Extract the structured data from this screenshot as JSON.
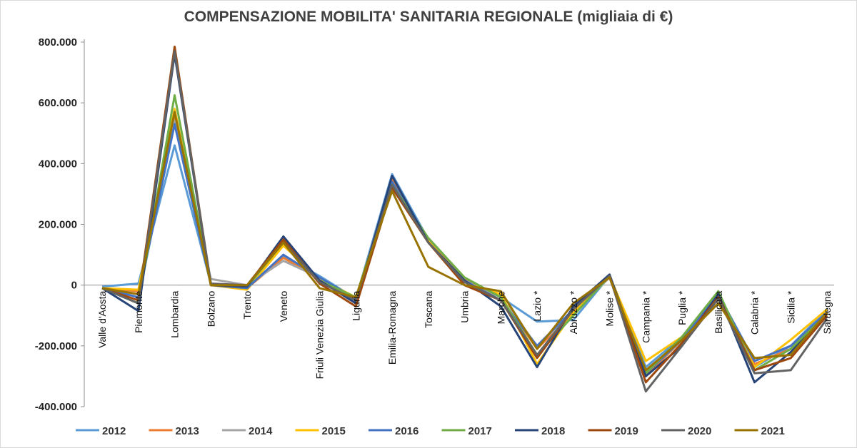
{
  "chart_data": {
    "type": "line",
    "title": "COMPENSAZIONE MOBILITA' SANITARIA REGIONALE (migliaia di €)",
    "xlabel": "",
    "ylabel": "",
    "ylim": [
      -400000,
      800000
    ],
    "yticks": [
      800000,
      600000,
      400000,
      200000,
      0,
      -200000,
      -400000
    ],
    "ytick_labels": [
      "800.000",
      "600.000",
      "400.000",
      "200.000",
      "0",
      "-200.000",
      "-400.000"
    ],
    "grid": false,
    "legend_position": "bottom",
    "categories": [
      "Valle d'Aosta",
      "Piemonte",
      "Lombardia",
      "Bolzano",
      "Trento",
      "Veneto",
      "Friuli Venezia Giulia",
      "Liguria",
      "Emilia-Romagna",
      "Toscana",
      "Umbria",
      "Marche",
      "Lazio *",
      "Abruzzo *",
      "Molise *",
      "Campania *",
      "Puglia *",
      "Basilicata",
      "Calabria *",
      "Sicilia *",
      "Sardegna"
    ],
    "series": [
      {
        "name": "2012",
        "color": "#5b9bd5",
        "values": [
          -5000,
          5000,
          460000,
          5000,
          -10000,
          95000,
          30000,
          -45000,
          365000,
          150000,
          15000,
          -40000,
          -120000,
          -115000,
          30000,
          -270000,
          -170000,
          -40000,
          -270000,
          -200000,
          -80000
        ]
      },
      {
        "name": "2013",
        "color": "#ed7d31",
        "values": [
          -10000,
          -20000,
          560000,
          0,
          -10000,
          90000,
          20000,
          -50000,
          350000,
          145000,
          20000,
          -40000,
          -210000,
          -90000,
          25000,
          -300000,
          -180000,
          -40000,
          -260000,
          -210000,
          -90000
        ]
      },
      {
        "name": "2014",
        "color": "#a5a5a5",
        "values": [
          -10000,
          -30000,
          540000,
          20000,
          0,
          80000,
          25000,
          -50000,
          340000,
          140000,
          15000,
          -40000,
          -200000,
          -90000,
          25000,
          -290000,
          -180000,
          -40000,
          -250000,
          -200000,
          -95000
        ]
      },
      {
        "name": "2015",
        "color": "#ffc000",
        "values": [
          -10000,
          -15000,
          580000,
          0,
          -15000,
          130000,
          20000,
          -40000,
          330000,
          145000,
          10000,
          -30000,
          -260000,
          -90000,
          30000,
          -250000,
          -170000,
          -40000,
          -270000,
          -180000,
          -80000
        ]
      },
      {
        "name": "2016",
        "color": "#4472c4",
        "values": [
          -10000,
          -40000,
          530000,
          0,
          -10000,
          100000,
          25000,
          -45000,
          340000,
          140000,
          15000,
          -50000,
          -200000,
          -80000,
          30000,
          -290000,
          -180000,
          -30000,
          -250000,
          -200000,
          -90000
        ]
      },
      {
        "name": "2017",
        "color": "#70ad47",
        "values": [
          -10000,
          -60000,
          625000,
          0,
          -5000,
          140000,
          15000,
          -40000,
          330000,
          155000,
          25000,
          -40000,
          -230000,
          -100000,
          30000,
          -290000,
          -170000,
          -20000,
          -280000,
          -210000,
          -95000
        ]
      },
      {
        "name": "2018",
        "color": "#264478",
        "values": [
          -10000,
          -85000,
          760000,
          0,
          -5000,
          160000,
          15000,
          -60000,
          360000,
          140000,
          15000,
          -70000,
          -270000,
          -70000,
          35000,
          -300000,
          -200000,
          -30000,
          -320000,
          -220000,
          -100000
        ]
      },
      {
        "name": "2019",
        "color": "#9e480e",
        "values": [
          -10000,
          -50000,
          785000,
          0,
          0,
          150000,
          5000,
          -70000,
          320000,
          140000,
          0,
          -50000,
          -240000,
          -80000,
          30000,
          -320000,
          -190000,
          -40000,
          -280000,
          -240000,
          -100000
        ]
      },
      {
        "name": "2020",
        "color": "#636363",
        "values": [
          -10000,
          -60000,
          770000,
          5000,
          0,
          140000,
          10000,
          -50000,
          330000,
          140000,
          10000,
          -50000,
          -230000,
          -80000,
          30000,
          -350000,
          -200000,
          -45000,
          -290000,
          -280000,
          -110000
        ]
      },
      {
        "name": "2021",
        "color": "#997300",
        "values": [
          -10000,
          -30000,
          570000,
          0,
          0,
          140000,
          -10000,
          -40000,
          310000,
          60000,
          0,
          -20000,
          -210000,
          -60000,
          25000,
          -280000,
          -180000,
          -60000,
          -240000,
          -230000,
          -90000
        ]
      }
    ]
  }
}
